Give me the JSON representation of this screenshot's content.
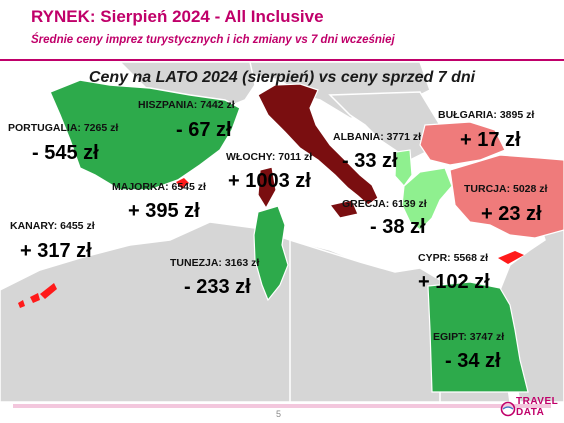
{
  "header": {
    "title": "RYNEK: Sierpień 2024 - All Inclusive",
    "subtitle": "Średnie ceny imprez turystycznych i ich zmiany vs 7 dni wcześniej"
  },
  "map_heading": "Ceny na LATO 2024 (sierpień) vs ceny sprzed 7 dni",
  "destinations": {
    "portugalia": {
      "label": "PORTUGALIA: 7265 zł",
      "change": "- 545 zł"
    },
    "hiszpania": {
      "label": "HISZPANIA: 7442 zł",
      "change": "- 67 zł"
    },
    "majorka": {
      "label": "MAJORKA: 6545 zł",
      "change": "+ 395 zł"
    },
    "kanary": {
      "label": "KANARY: 6455 zł",
      "change": "+ 317 zł"
    },
    "wlochy": {
      "label": "WŁOCHY: 7011 zł",
      "change": "+ 1003 zł"
    },
    "tunezja": {
      "label": "TUNEZJA: 3163 zł",
      "change": "- 233 zł"
    },
    "albania": {
      "label": "ALBANIA: 3771 zł",
      "change": "- 33 zł"
    },
    "grecja": {
      "label": "GRECJA: 6139 zł",
      "change": "- 38 zł"
    },
    "bulgaria": {
      "label": "BUŁGARIA: 3895 zł",
      "change": "+ 17 zł"
    },
    "turcja": {
      "label": "TURCJA: 5028 zł",
      "change": "+ 23 zł"
    },
    "cypr": {
      "label": "CYPR: 5568 zł",
      "change": "+ 102 zł"
    },
    "egipt": {
      "label": "EGIPT: 3747 zł",
      "change": "- 34 zł"
    }
  },
  "colors": {
    "brand": "#c0006a",
    "decrease": "#2daa4b",
    "increase": "#ef7b7b",
    "strong_increase": "#7a0e10",
    "island_increase": "#ff1a1a",
    "land": "#d6d6d6"
  },
  "footer": {
    "page_number": "5",
    "logo_line1": "TRAVEL",
    "logo_line2": "DATA"
  }
}
